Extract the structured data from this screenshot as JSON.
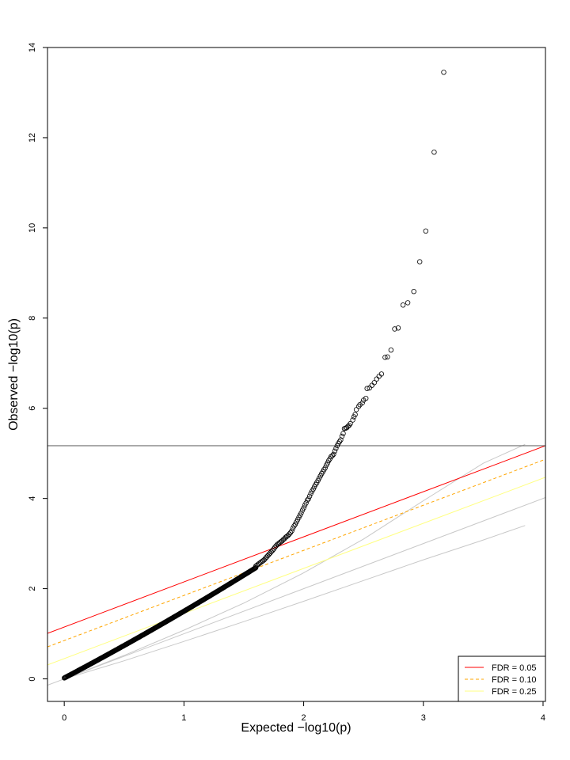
{
  "chart_data": {
    "type": "scatter",
    "xlabel": "Expected −log10(p)",
    "ylabel": "Observed −log10(p)",
    "xlim": [
      -0.14,
      4.02
    ],
    "ylim": [
      -0.5,
      14.0
    ],
    "x_ticks": [
      0,
      1,
      2,
      3,
      4
    ],
    "y_ticks": [
      0,
      2,
      4,
      6,
      8,
      10,
      12,
      14
    ],
    "grid": false,
    "legend_position": "bottom-right",
    "significance_threshold": 5.17,
    "series": [
      {
        "name": "observed",
        "x": [
          3.17,
          3.09,
          3.02,
          2.97,
          2.92,
          2.87,
          2.83,
          2.79,
          2.76,
          2.73,
          2.7,
          2.68,
          2.65,
          2.63,
          2.61,
          2.59,
          2.57,
          2.55,
          2.53,
          2.52,
          2.5,
          2.49,
          2.47,
          2.46,
          2.44,
          2.43,
          2.42,
          2.41,
          2.39,
          2.38,
          2.37,
          2.36,
          2.35,
          2.34,
          2.33,
          2.32,
          2.31,
          2.3,
          2.29,
          2.28,
          2.27,
          2.26,
          2.25,
          2.24,
          2.23,
          2.22,
          2.21,
          2.2,
          2.19,
          2.18,
          2.17,
          2.16,
          2.15,
          2.14,
          2.13,
          2.12,
          2.11,
          2.1,
          2.09,
          2.08,
          2.07,
          2.06,
          2.05,
          2.04,
          2.03,
          2.02,
          2.01,
          2.0,
          1.99,
          1.98,
          1.97,
          1.96,
          1.95,
          1.94,
          1.93,
          1.92,
          1.91,
          1.9,
          1.89,
          1.88,
          1.87,
          1.86,
          1.85,
          1.84,
          1.83,
          1.82,
          1.81,
          1.8,
          1.79,
          1.78,
          1.77,
          1.76,
          1.75,
          1.74,
          1.73,
          1.72,
          1.71,
          1.7,
          1.69,
          1.68,
          1.67,
          1.66,
          1.65,
          1.64,
          1.63,
          1.62,
          1.61,
          1.6
        ],
        "y": [
          13.45,
          11.68,
          9.93,
          9.25,
          8.59,
          8.34,
          8.29,
          7.78,
          7.76,
          7.29,
          7.14,
          7.13,
          6.76,
          6.71,
          6.65,
          6.57,
          6.51,
          6.45,
          6.44,
          6.22,
          6.18,
          6.12,
          6.08,
          6.04,
          5.97,
          5.86,
          5.81,
          5.74,
          5.66,
          5.62,
          5.6,
          5.57,
          5.56,
          5.55,
          5.44,
          5.38,
          5.3,
          5.26,
          5.22,
          5.17,
          5.11,
          5.05,
          4.98,
          4.95,
          4.93,
          4.88,
          4.84,
          4.79,
          4.74,
          4.68,
          4.64,
          4.59,
          4.55,
          4.5,
          4.45,
          4.4,
          4.35,
          4.31,
          4.26,
          4.21,
          4.16,
          4.11,
          4.05,
          3.99,
          3.96,
          3.9,
          3.85,
          3.79,
          3.74,
          3.68,
          3.63,
          3.58,
          3.53,
          3.48,
          3.43,
          3.39,
          3.34,
          3.28,
          3.24,
          3.21,
          3.18,
          3.16,
          3.14,
          3.11,
          3.09,
          3.06,
          3.04,
          3.02,
          3.0,
          2.98,
          2.95,
          2.92,
          2.88,
          2.85,
          2.82,
          2.79,
          2.76,
          2.73,
          2.7,
          2.67,
          2.64,
          2.62,
          2.6,
          2.58,
          2.56,
          2.54,
          2.52,
          2.5
        ]
      }
    ],
    "reference_lines": [
      {
        "name": "FDR = 0.05",
        "color": "#ff0000",
        "dash": "solid",
        "intercept": 1.15,
        "slope": 1.0
      },
      {
        "name": "FDR = 0.10",
        "color": "#ffa500",
        "dash": "dashed",
        "intercept": 0.85,
        "slope": 1.0
      },
      {
        "name": "FDR = 0.25",
        "color": "#ffff80",
        "dash": "solid",
        "intercept": 0.45,
        "slope": 1.0
      }
    ],
    "envelope_lines": [
      {
        "color": "#c8c8c8",
        "points": [
          [
            -0.14,
            -0.14
          ],
          [
            4.02,
            4.02
          ]
        ]
      },
      {
        "color": "#c8c8c8",
        "points": [
          [
            0.0,
            0.0
          ],
          [
            0.5,
            0.4
          ],
          [
            1.0,
            0.83
          ],
          [
            1.5,
            1.27
          ],
          [
            2.0,
            1.72
          ],
          [
            2.5,
            2.18
          ],
          [
            3.0,
            2.64
          ],
          [
            3.5,
            3.08
          ],
          [
            3.85,
            3.4
          ]
        ]
      },
      {
        "color": "#c8c8c8",
        "points": [
          [
            0.0,
            0.0
          ],
          [
            0.5,
            0.52
          ],
          [
            1.0,
            1.08
          ],
          [
            1.5,
            1.68
          ],
          [
            2.0,
            2.35
          ],
          [
            2.5,
            3.1
          ],
          [
            3.0,
            3.95
          ],
          [
            3.5,
            4.78
          ],
          [
            3.85,
            5.2
          ]
        ]
      }
    ],
    "legend": [
      {
        "label": "FDR = 0.05",
        "color": "#ff0000",
        "dash": "solid"
      },
      {
        "label": "FDR = 0.10",
        "color": "#ffa500",
        "dash": "dashed"
      },
      {
        "label": "FDR = 0.25",
        "color": "#ffff80",
        "dash": "solid"
      }
    ]
  }
}
